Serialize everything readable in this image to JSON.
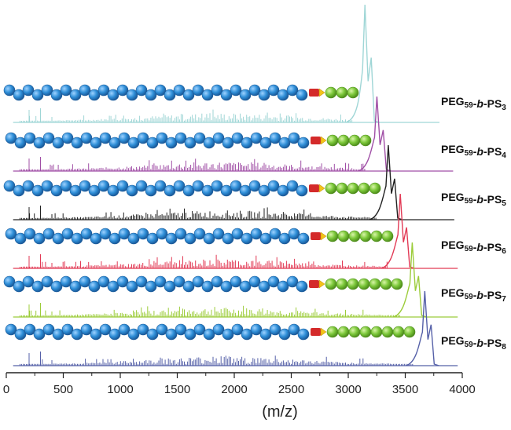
{
  "chart_data": {
    "type": "line",
    "xlabel": "(m/z)",
    "xlim": [
      0,
      4000
    ],
    "xticks": [
      "0",
      "500",
      "1000",
      "1500",
      "2000",
      "2500",
      "3000",
      "3500",
      "4000"
    ],
    "grid": false,
    "series": [
      {
        "name": "PEG59-b-PS3",
        "label_main": "PEG",
        "label_sub1": "59",
        "label_mid": "-b-PS",
        "label_sub2": "3",
        "color": "#9fd6d6",
        "peak_x": 3160,
        "ps_units": 3,
        "end_x": 3800
      },
      {
        "name": "PEG59-b-PS4",
        "label_main": "PEG",
        "label_sub1": "59",
        "label_mid": "-b-PS",
        "label_sub2": "4",
        "color": "#a04fa6",
        "peak_x": 3265,
        "ps_units": 4,
        "end_x": 3920
      },
      {
        "name": "PEG59-b-PS5",
        "label_main": "PEG",
        "label_sub1": "59",
        "label_mid": "-b-PS",
        "label_sub2": "5",
        "color": "#222222",
        "peak_x": 3365,
        "ps_units": 5,
        "end_x": 3930
      },
      {
        "name": "PEG59-b-PS6",
        "label_main": "PEG",
        "label_sub1": "59",
        "label_mid": "-b-PS",
        "label_sub2": "6",
        "color": "#e23a55",
        "peak_x": 3470,
        "ps_units": 6,
        "end_x": 3960
      },
      {
        "name": "PEG59-b-PS7",
        "label_main": "PEG",
        "label_sub1": "59",
        "label_mid": "-b-PS",
        "label_sub2": "7",
        "color": "#9ccc3a",
        "peak_x": 3575,
        "ps_units": 7,
        "end_x": 3960
      },
      {
        "name": "PEG59-b-PS8",
        "label_main": "PEG",
        "label_sub1": "59",
        "label_mid": "-b-PS",
        "label_sub2": "8",
        "color": "#5560a8",
        "peak_x": 3685,
        "ps_units": 8,
        "end_x": 3960
      }
    ]
  },
  "colors": {
    "peg_bead": "#2f8fd8",
    "linker_red": "#d42a2a",
    "linker_yellow": "#f3c21a",
    "ps_bead": "#7cc83a",
    "axis": "#222222"
  }
}
